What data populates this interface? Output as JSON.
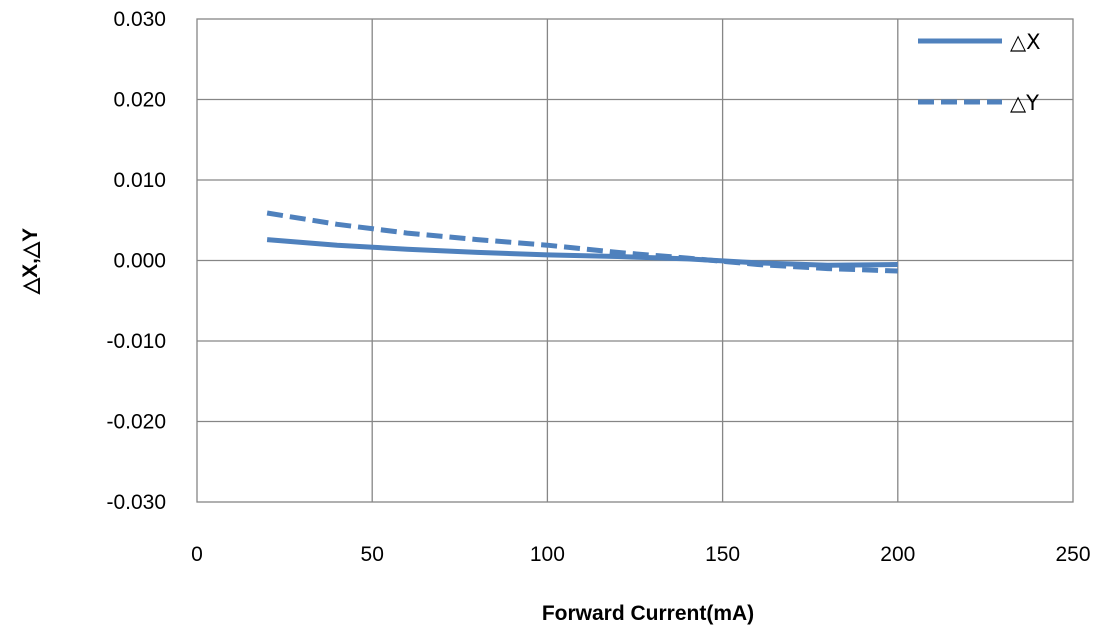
{
  "chart_data": {
    "type": "line",
    "title": "",
    "xlabel": "Forward Current(mA)",
    "ylabel": "△X,△Y",
    "xlim": [
      0,
      250
    ],
    "ylim": [
      -0.03,
      0.03
    ],
    "x_ticks": [
      "0",
      "50",
      "100",
      "150",
      "200",
      "250"
    ],
    "y_ticks": [
      "0.030",
      "0.020",
      "0.010",
      "0.000",
      "-0.010",
      "-0.020",
      "-0.030"
    ],
    "grid": true,
    "legend_position": "top-right",
    "series": [
      {
        "name": "△X",
        "style": "solid",
        "color": "#4F81BD",
        "x": [
          20,
          40,
          60,
          80,
          100,
          120,
          140,
          160,
          180,
          200
        ],
        "y": [
          0.0026,
          0.0019,
          0.0014,
          0.001,
          0.0007,
          0.0005,
          0.0002,
          -0.0003,
          -0.0006,
          -0.0005
        ]
      },
      {
        "name": "△Y",
        "style": "dashed",
        "color": "#4F81BD",
        "x": [
          20,
          40,
          60,
          80,
          100,
          120,
          140,
          160,
          180,
          200
        ],
        "y": [
          0.0059,
          0.0045,
          0.0034,
          0.0026,
          0.0019,
          0.001,
          0.0003,
          -0.0005,
          -0.001,
          -0.0013
        ]
      }
    ]
  }
}
